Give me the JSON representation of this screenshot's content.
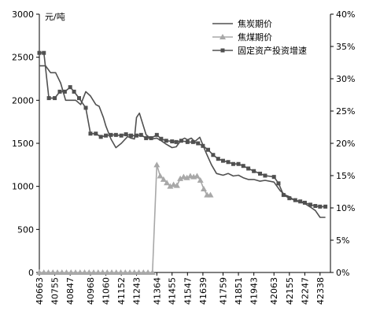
{
  "chart_data": {
    "type": "line",
    "title": "",
    "ylabel_left": "元/吨",
    "ylim_left": [
      0,
      3000
    ],
    "yticks_left": [
      "3000",
      "2500",
      "2000",
      "1500",
      "1000",
      "500",
      "0"
    ],
    "ylim_right": [
      0,
      40
    ],
    "yticks_right": [
      "40%",
      "35%",
      "30%",
      "25%",
      "20%",
      "15%",
      "10%",
      "5%",
      "0%"
    ],
    "xlim": [
      40663,
      42400
    ],
    "xticks": [
      "40663",
      "40755",
      "40847",
      "40968",
      "41060",
      "41152",
      "41243",
      "41364",
      "41455",
      "41547",
      "41639",
      "41759",
      "41851",
      "41943",
      "42063",
      "42155",
      "42247",
      "42338"
    ],
    "legend_position": "top-right",
    "series": [
      {
        "name": "焦炭期价",
        "color": "#505050",
        "marker": "none",
        "axis": "left",
        "x": [
          40663,
          40700,
          40730,
          40760,
          40790,
          40820,
          40847,
          40880,
          40910,
          40940,
          40968,
          41000,
          41020,
          41045,
          41060,
          41090,
          41120,
          41152,
          41190,
          41210,
          41230,
          41243,
          41260,
          41300,
          41330,
          41364,
          41390,
          41420,
          41455,
          41480,
          41510,
          41530,
          41547,
          41570,
          41590,
          41620,
          41639,
          41660,
          41690,
          41720,
          41759,
          41790,
          41820,
          41851,
          41880,
          41910,
          41943,
          41980,
          42010,
          42063,
          42100,
          42130,
          42155,
          42190,
          42220,
          42247,
          42280,
          42310,
          42338,
          42370
        ],
        "values": [
          2400,
          2400,
          2320,
          2320,
          2200,
          2000,
          2000,
          2000,
          1950,
          2100,
          2050,
          1950,
          1930,
          1800,
          1700,
          1550,
          1450,
          1500,
          1580,
          1560,
          1550,
          1800,
          1850,
          1600,
          1550,
          1560,
          1530,
          1490,
          1450,
          1460,
          1540,
          1560,
          1540,
          1560,
          1520,
          1570,
          1480,
          1380,
          1250,
          1150,
          1130,
          1150,
          1120,
          1130,
          1100,
          1080,
          1080,
          1060,
          1070,
          1050,
          950,
          900,
          880,
          830,
          820,
          800,
          760,
          720,
          640,
          640
        ]
      },
      {
        "name": "焦煤期价",
        "color": "#a8a8a8",
        "marker": "triangle",
        "axis": "left",
        "x": [
          40663,
          40690,
          40717,
          40744,
          40771,
          40798,
          40825,
          40852,
          40879,
          40906,
          40933,
          40960,
          40987,
          41014,
          41041,
          41068,
          41095,
          41122,
          41149,
          41176,
          41203,
          41230,
          41257,
          41284,
          41311,
          41338,
          41364,
          41384,
          41404,
          41424,
          41444,
          41464,
          41484,
          41504,
          41524,
          41544,
          41564,
          41584,
          41604,
          41624,
          41644,
          41664,
          41684
        ],
        "values": [
          0,
          0,
          0,
          0,
          0,
          0,
          0,
          0,
          0,
          0,
          0,
          0,
          0,
          0,
          0,
          0,
          0,
          0,
          0,
          0,
          0,
          0,
          0,
          0,
          0,
          0,
          1250,
          1120,
          1080,
          1040,
          1000,
          1020,
          1010,
          1090,
          1110,
          1100,
          1120,
          1110,
          1120,
          1070,
          970,
          900,
          900
        ]
      },
      {
        "name": "固定资产投资增速",
        "color": "#505050",
        "marker": "square",
        "axis": "right",
        "x": [
          40663,
          40690,
          40720,
          40755,
          40785,
          40815,
          40847,
          40870,
          40900,
          40940,
          40968,
          41000,
          41030,
          41060,
          41090,
          41120,
          41152,
          41180,
          41210,
          41243,
          41270,
          41300,
          41330,
          41364,
          41390,
          41420,
          41455,
          41480,
          41510,
          41547,
          41580,
          41610,
          41639,
          41670,
          41700,
          41730,
          41759,
          41790,
          41820,
          41851,
          41880,
          41910,
          41943,
          41980,
          42010,
          42063,
          42090,
          42120,
          42155,
          42190,
          42220,
          42247,
          42280,
          42310,
          42338,
          42370
        ],
        "values": [
          34,
          34,
          27,
          27,
          28,
          28,
          28.7,
          28,
          27,
          25.5,
          21.5,
          21.5,
          21,
          21.2,
          21.3,
          21.3,
          21.2,
          21.4,
          21.2,
          21.2,
          21.3,
          20.8,
          20.8,
          21.3,
          20.7,
          20.4,
          20.3,
          20.2,
          20.4,
          20.2,
          20.2,
          20.0,
          19.6,
          19.0,
          18.2,
          17.6,
          17.3,
          17.1,
          16.8,
          16.8,
          16.5,
          16.1,
          15.7,
          15.3,
          15.0,
          14.8,
          13.8,
          12.0,
          11.5,
          11.2,
          11.0,
          10.8,
          10.5,
          10.3,
          10.2,
          10.2
        ]
      }
    ]
  }
}
